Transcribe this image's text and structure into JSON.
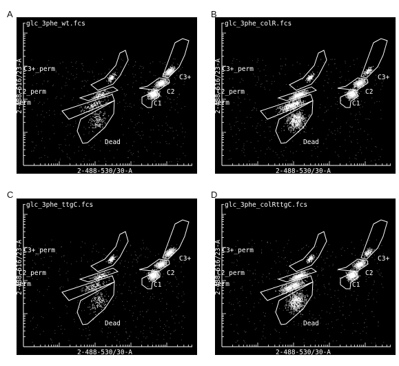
{
  "figure": {
    "background": "#000000",
    "ink": "#ffffff"
  },
  "chart_data": [
    {
      "type": "scatter",
      "panel": "A",
      "title": "glc_3phe_wt.fcs",
      "xlabel": "2-488-530/30-A",
      "ylabel": "2-488-616/23-A",
      "axis_scale": "log",
      "gates": [
        "C3+_perm",
        "C2_perm",
        "C1_perm",
        "Dead",
        "C3+",
        "C2",
        "C1"
      ],
      "dominant_populations": [
        "C1",
        "C2",
        "C3+"
      ]
    },
    {
      "type": "scatter",
      "panel": "B",
      "title": "glc_3phe_colR.fcs",
      "xlabel": "2-488-530/30-A",
      "ylabel": "2-488-616/23-A",
      "axis_scale": "log",
      "gates": [
        "C3+_perm",
        "C2_perm",
        "C1_perm",
        "Dead",
        "C3+",
        "C2",
        "C1"
      ],
      "dominant_populations": [
        "C1_perm",
        "C2_perm",
        "Dead",
        "C1",
        "C2"
      ]
    },
    {
      "type": "scatter",
      "panel": "C",
      "title": "glc_3phe_ttgC.fcs",
      "xlabel": "2-488-530/30-A",
      "ylabel": "2-488-616/23-A",
      "axis_scale": "log",
      "gates": [
        "C3+_perm",
        "C2_perm",
        "C1_perm",
        "Dead",
        "C3+",
        "C2",
        "C1"
      ],
      "dominant_populations": [
        "C1",
        "C2",
        "C3+"
      ]
    },
    {
      "type": "scatter",
      "panel": "D",
      "title": "glc_3phe_colRttgC.fcs",
      "xlabel": "2-488-530/30-A",
      "ylabel": "2-488-616/23-A",
      "axis_scale": "log",
      "gates": [
        "C3+_perm",
        "C2_perm",
        "C1_perm",
        "Dead",
        "C3+",
        "C2",
        "C1"
      ],
      "dominant_populations": [
        "C1_perm",
        "C2_perm",
        "Dead",
        "C1",
        "C2"
      ]
    }
  ]
}
